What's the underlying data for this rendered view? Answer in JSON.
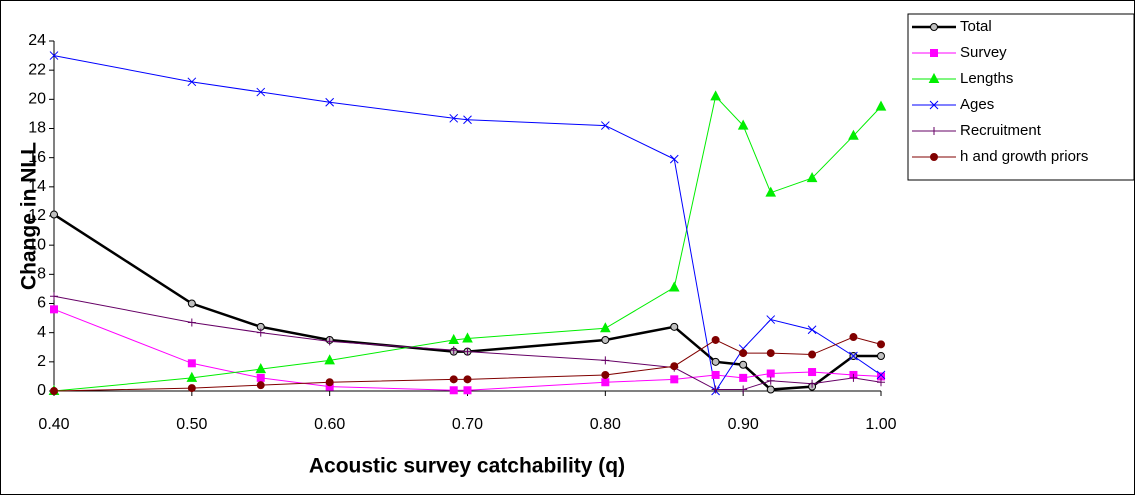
{
  "chart_data": {
    "type": "line",
    "x_label": "Acoustic survey catchability (q)",
    "y_label": "Change in NLL",
    "x": [
      0.4,
      0.5,
      0.55,
      0.6,
      0.69,
      0.7,
      0.8,
      0.85,
      0.88,
      0.9,
      0.92,
      0.95,
      0.98,
      1.0
    ],
    "series": [
      {
        "name": "Total",
        "color": "#000000",
        "marker": "circle",
        "marker_fill": "#c0c0c0",
        "line_width": 2.5,
        "values": [
          12.1,
          6.0,
          4.4,
          3.5,
          2.7,
          2.7,
          3.5,
          4.4,
          2.0,
          1.8,
          0.1,
          0.3,
          2.4,
          2.4
        ]
      },
      {
        "name": "Survey",
        "color": "#ff00ff",
        "marker": "square",
        "marker_fill": "#ff00ff",
        "line_width": 1,
        "values": [
          5.6,
          1.9,
          0.9,
          0.3,
          0.05,
          0.05,
          0.6,
          0.8,
          1.1,
          0.9,
          1.2,
          1.3,
          1.1,
          1.0
        ]
      },
      {
        "name": "Lengths",
        "color": "#00ee00",
        "marker": "triangle",
        "marker_fill": "#00ee00",
        "line_width": 1,
        "values": [
          0,
          0.9,
          1.5,
          2.1,
          3.5,
          3.6,
          4.3,
          7.1,
          20.2,
          18.2,
          13.6,
          14.6,
          17.5,
          19.5
        ]
      },
      {
        "name": "Ages",
        "color": "#0000ff",
        "marker": "x",
        "marker_fill": "none",
        "line_width": 1,
        "values": [
          23.0,
          21.2,
          20.5,
          19.8,
          18.7,
          18.6,
          18.2,
          15.9,
          0,
          2.9,
          4.9,
          4.2,
          2.4,
          1.1
        ]
      },
      {
        "name": "Recruitment",
        "color": "#660066",
        "marker": "plus",
        "marker_fill": "none",
        "line_width": 1,
        "values": [
          6.5,
          4.7,
          4.0,
          3.4,
          2.8,
          2.7,
          2.1,
          1.6,
          0.1,
          0.1,
          0.7,
          0.5,
          0.9,
          0.6
        ]
      },
      {
        "name": "h and growth priors",
        "color": "#800000",
        "marker": "circle",
        "marker_fill": "#800000",
        "line_width": 1,
        "values": [
          0,
          0.2,
          0.4,
          0.6,
          0.8,
          0.8,
          1.1,
          1.7,
          3.5,
          2.6,
          2.6,
          2.5,
          3.7,
          3.2
        ]
      }
    ],
    "xlim": [
      0.4,
      1.0
    ],
    "xticks": [
      {
        "value": 0.4,
        "label": "0.40"
      },
      {
        "value": 0.5,
        "label": "0.50"
      },
      {
        "value": 0.6,
        "label": "0.60"
      },
      {
        "value": 0.7,
        "label": "0.70"
      },
      {
        "value": 0.8,
        "label": "0.80"
      },
      {
        "value": 0.9,
        "label": "0.90"
      },
      {
        "value": 1.0,
        "label": "1.00"
      }
    ],
    "ylim": [
      0,
      24
    ],
    "yticks": [
      0,
      2,
      4,
      6,
      8,
      10,
      12,
      14,
      16,
      18,
      20,
      22,
      24
    ],
    "grid": false,
    "legend": "right"
  }
}
